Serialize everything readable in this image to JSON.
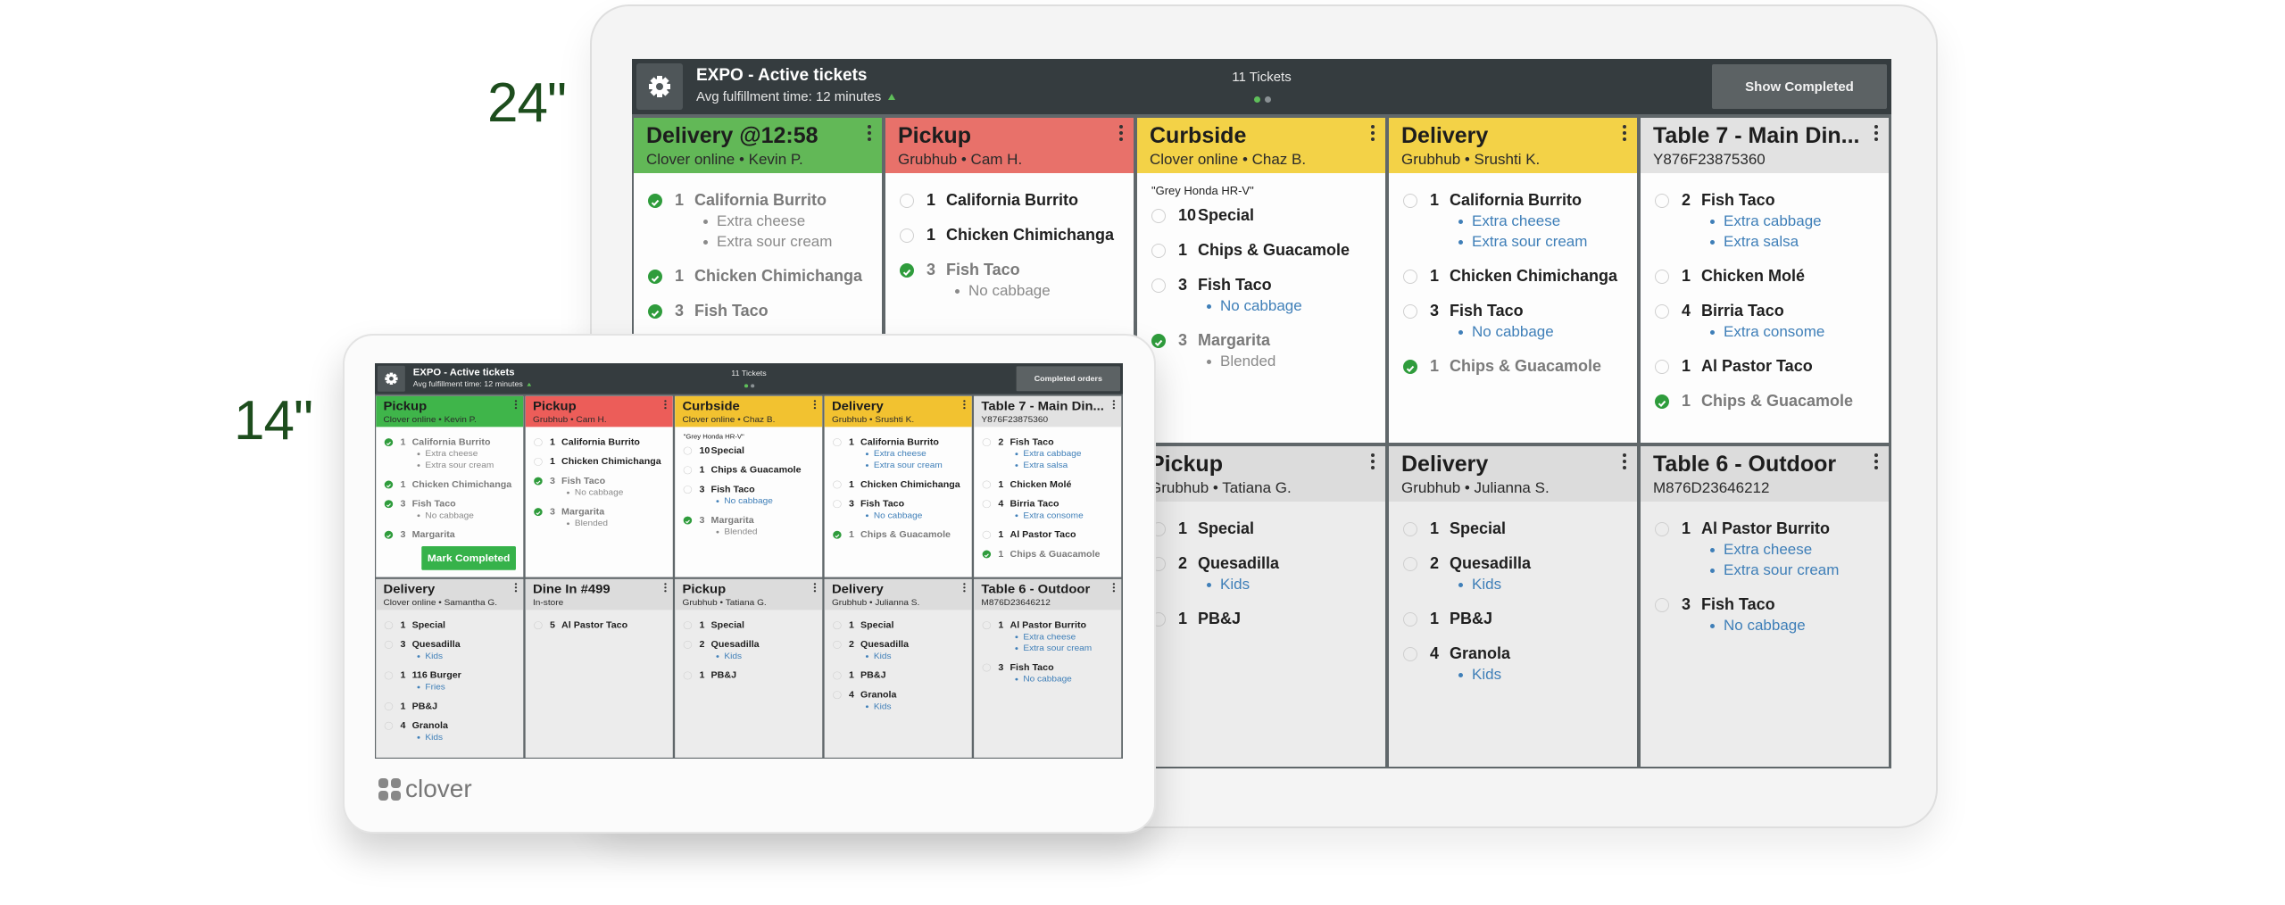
{
  "labels": {
    "large": "24\"",
    "small": "14\""
  },
  "brand": "clover",
  "devices": [
    {
      "header": {
        "title": "EXPO - Active tickets",
        "subtitle": "Avg fulfillment time: 12 minutes",
        "count": "11 Tickets",
        "button": "Show Completed"
      },
      "tickets": [
        {
          "title": "Delivery @12:58",
          "sub": "Clover online •  Kevin P.",
          "color": "#62b857",
          "items": [
            {
              "qty": 1,
              "name": "California Burrito",
              "done": true,
              "mods": [
                "Extra cheese",
                "Extra sour cream"
              ]
            },
            {
              "qty": 1,
              "name": "Chicken Chimichanga",
              "done": true,
              "mods": []
            },
            {
              "qty": 3,
              "name": "Fish Taco",
              "done": true,
              "mods": []
            }
          ]
        },
        {
          "title": "Pickup",
          "sub": "Grubhub •  Cam H.",
          "color": "#e8716a",
          "items": [
            {
              "qty": 1,
              "name": "California Burrito",
              "done": false,
              "mods": []
            },
            {
              "qty": 1,
              "name": "Chicken Chimichanga",
              "done": false,
              "mods": []
            },
            {
              "qty": 3,
              "name": "Fish Taco",
              "done": true,
              "mods": [
                "No cabbage"
              ]
            }
          ]
        },
        {
          "title": "Curbside",
          "sub": "Clover online •  Chaz B.",
          "color": "#f3d247",
          "note": "\"Grey Honda HR-V\"",
          "items": [
            {
              "qty": 10,
              "name": "Special",
              "done": false,
              "mods": []
            },
            {
              "qty": 1,
              "name": "Chips & Guacamole",
              "done": false,
              "mods": []
            },
            {
              "qty": 3,
              "name": "Fish Taco",
              "done": false,
              "mods": [
                "No cabbage"
              ]
            },
            {
              "qty": 3,
              "name": "Margarita",
              "done": true,
              "mods": [
                "Blended"
              ]
            }
          ]
        },
        {
          "title": "Delivery",
          "sub": "Grubhub •  Srushti K.",
          "color": "#f3d247",
          "items": [
            {
              "qty": 1,
              "name": "California Burrito",
              "done": false,
              "mods": [
                "Extra cheese",
                "Extra sour cream"
              ]
            },
            {
              "qty": 1,
              "name": "Chicken Chimichanga",
              "done": false,
              "mods": []
            },
            {
              "qty": 3,
              "name": "Fish Taco",
              "done": false,
              "mods": [
                "No cabbage"
              ]
            },
            {
              "qty": 1,
              "name": "Chips & Guacamole",
              "done": true,
              "mods": []
            }
          ]
        },
        {
          "title": "Table 7 - Main Din...",
          "sub": "Y876F23875360",
          "color": "#e2e2e2",
          "items": [
            {
              "qty": 2,
              "name": "Fish Taco",
              "done": false,
              "mods": [
                "Extra cabbage",
                "Extra salsa"
              ]
            },
            {
              "qty": 1,
              "name": "Chicken Molé",
              "done": false,
              "mods": []
            },
            {
              "qty": 4,
              "name": "Birria Taco",
              "done": false,
              "mods": [
                "Extra consome"
              ]
            },
            {
              "qty": 1,
              "name": "Al Pastor Taco",
              "done": false,
              "mods": []
            },
            {
              "qty": 1,
              "name": "Chips & Guacamole",
              "done": true,
              "mods": []
            }
          ]
        },
        {
          "title": "Pickup",
          "sub": "Grubhub •  Tatiana G.",
          "color": "#dcdcdc",
          "items": [
            {
              "qty": 1,
              "name": "Special",
              "done": false,
              "mods": []
            },
            {
              "qty": 2,
              "name": "Quesadilla",
              "done": false,
              "mods": [
                "Kids"
              ]
            },
            {
              "qty": 1,
              "name": "PB&J",
              "done": false,
              "mods": []
            }
          ]
        },
        {
          "title": "Delivery",
          "sub": "Grubhub •  Julianna S.",
          "color": "#dcdcdc",
          "items": [
            {
              "qty": 1,
              "name": "Special",
              "done": false,
              "mods": []
            },
            {
              "qty": 2,
              "name": "Quesadilla",
              "done": false,
              "mods": [
                "Kids"
              ]
            },
            {
              "qty": 1,
              "name": "PB&J",
              "done": false,
              "mods": []
            },
            {
              "qty": 4,
              "name": "Granola",
              "done": false,
              "mods": [
                "Kids"
              ]
            }
          ]
        },
        {
          "title": "Table 6 - Outdoor",
          "sub": "M876D23646212",
          "color": "#dcdcdc",
          "items": [
            {
              "qty": 1,
              "name": "Al Pastor Burrito",
              "done": false,
              "mods": [
                "Extra cheese",
                "Extra sour cream"
              ]
            },
            {
              "qty": 3,
              "name": "Fish Taco",
              "done": false,
              "mods": [
                "No cabbage"
              ]
            }
          ]
        }
      ]
    },
    {
      "header": {
        "title": "EXPO - Active tickets",
        "subtitle": "Avg fulfillment time: 12 minutes",
        "count": "11 Tickets",
        "button": "Completed orders"
      },
      "tickets": [
        {
          "title": "Pickup",
          "sub": "Clover online •  Kevin P.",
          "color": "#3fb54a",
          "action": "Mark Completed",
          "items": [
            {
              "qty": 1,
              "name": "California Burrito",
              "done": true,
              "mods": [
                "Extra cheese",
                "Extra sour cream"
              ]
            },
            {
              "qty": 1,
              "name": "Chicken Chimichanga",
              "done": true,
              "mods": []
            },
            {
              "qty": 3,
              "name": "Fish Taco",
              "done": true,
              "mods": [
                "No cabbage"
              ]
            },
            {
              "qty": 3,
              "name": "Margarita",
              "done": true,
              "mods": []
            }
          ]
        },
        {
          "title": "Pickup",
          "sub": "Grubhub •  Cam H.",
          "color": "#ec5d59",
          "items": [
            {
              "qty": 1,
              "name": "California Burrito",
              "done": false,
              "mods": []
            },
            {
              "qty": 1,
              "name": "Chicken Chimichanga",
              "done": false,
              "mods": []
            },
            {
              "qty": 3,
              "name": "Fish Taco",
              "done": true,
              "mods": [
                "No cabbage"
              ]
            },
            {
              "qty": 3,
              "name": "Margarita",
              "done": true,
              "mods": [
                "Blended"
              ]
            }
          ]
        },
        {
          "title": "Curbside",
          "sub": "Clover online •  Chaz B.",
          "color": "#f2c230",
          "note": "\"Grey Honda HR-V\"",
          "items": [
            {
              "qty": 10,
              "name": "Special",
              "done": false,
              "mods": []
            },
            {
              "qty": 1,
              "name": "Chips & Guacamole",
              "done": false,
              "mods": []
            },
            {
              "qty": 3,
              "name": "Fish Taco",
              "done": false,
              "mods": [
                "No cabbage"
              ]
            },
            {
              "qty": 3,
              "name": "Margarita",
              "done": true,
              "mods": [
                "Blended"
              ]
            }
          ]
        },
        {
          "title": "Delivery",
          "sub": "Grubhub •  Srushti K.",
          "color": "#f2c230",
          "items": [
            {
              "qty": 1,
              "name": "California Burrito",
              "done": false,
              "mods": [
                "Extra cheese",
                "Extra sour cream"
              ]
            },
            {
              "qty": 1,
              "name": "Chicken Chimichanga",
              "done": false,
              "mods": []
            },
            {
              "qty": 3,
              "name": "Fish Taco",
              "done": false,
              "mods": [
                "No cabbage"
              ]
            },
            {
              "qty": 1,
              "name": "Chips & Guacamole",
              "done": true,
              "mods": []
            }
          ]
        },
        {
          "title": "Table 7 - Main Din...",
          "sub": "Y876F23875360",
          "color": "#e2e2e2",
          "items": [
            {
              "qty": 2,
              "name": "Fish Taco",
              "done": false,
              "mods": [
                "Extra cabbage",
                "Extra salsa"
              ]
            },
            {
              "qty": 1,
              "name": "Chicken Molé",
              "done": false,
              "mods": []
            },
            {
              "qty": 4,
              "name": "Birria Taco",
              "done": false,
              "mods": [
                "Extra consome"
              ]
            },
            {
              "qty": 1,
              "name": "Al Pastor Taco",
              "done": false,
              "mods": []
            },
            {
              "qty": 1,
              "name": "Chips & Guacamole",
              "done": true,
              "mods": []
            }
          ]
        },
        {
          "title": "Delivery",
          "sub": "Clover online •  Samantha G.",
          "color": "#dcdcdc",
          "items": [
            {
              "qty": 1,
              "name": "Special",
              "done": false,
              "mods": []
            },
            {
              "qty": 3,
              "name": "Quesadilla",
              "done": false,
              "mods": [
                "Kids"
              ]
            },
            {
              "qty": 1,
              "name": "116 Burger",
              "done": false,
              "mods": [
                "Fries"
              ]
            },
            {
              "qty": 1,
              "name": "PB&J",
              "done": false,
              "mods": []
            },
            {
              "qty": 4,
              "name": "Granola",
              "done": false,
              "mods": [
                "Kids"
              ]
            }
          ]
        },
        {
          "title": "Dine In #499",
          "sub": "In-store",
          "color": "#dcdcdc",
          "items": [
            {
              "qty": 5,
              "name": "Al Pastor Taco",
              "done": false,
              "mods": []
            }
          ]
        },
        {
          "title": "Pickup",
          "sub": "Grubhub •  Tatiana G.",
          "color": "#dcdcdc",
          "items": [
            {
              "qty": 1,
              "name": "Special",
              "done": false,
              "mods": []
            },
            {
              "qty": 2,
              "name": "Quesadilla",
              "done": false,
              "mods": [
                "Kids"
              ]
            },
            {
              "qty": 1,
              "name": "PB&J",
              "done": false,
              "mods": []
            }
          ]
        },
        {
          "title": "Delivery",
          "sub": "Grubhub •  Julianna S.",
          "color": "#dcdcdc",
          "items": [
            {
              "qty": 1,
              "name": "Special",
              "done": false,
              "mods": []
            },
            {
              "qty": 2,
              "name": "Quesadilla",
              "done": false,
              "mods": [
                "Kids"
              ]
            },
            {
              "qty": 1,
              "name": "PB&J",
              "done": false,
              "mods": []
            },
            {
              "qty": 4,
              "name": "Granola",
              "done": false,
              "mods": [
                "Kids"
              ]
            }
          ]
        },
        {
          "title": "Table 6 - Outdoor",
          "sub": "M876D23646212",
          "color": "#dcdcdc",
          "items": [
            {
              "qty": 1,
              "name": "Al Pastor Burrito",
              "done": false,
              "mods": [
                "Extra cheese",
                "Extra sour cream"
              ]
            },
            {
              "qty": 3,
              "name": "Fish Taco",
              "done": false,
              "mods": [
                "No cabbage"
              ]
            }
          ]
        }
      ]
    }
  ]
}
